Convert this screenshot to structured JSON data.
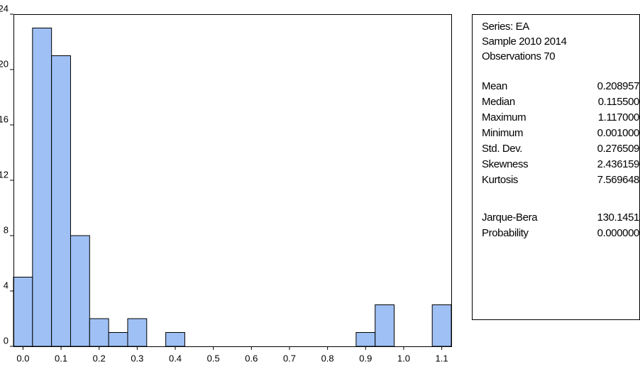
{
  "chart_data": {
    "type": "histogram",
    "bins": [
      -0.025,
      0.025,
      0.075,
      0.125,
      0.175,
      0.225,
      0.275,
      0.325,
      0.375,
      0.425,
      0.475,
      0.525,
      0.575,
      0.625,
      0.675,
      0.725,
      0.775,
      0.825,
      0.875,
      0.925,
      0.975,
      1.025,
      1.075,
      1.125
    ],
    "counts": [
      5,
      23,
      21,
      8,
      2,
      1,
      2,
      0,
      1,
      0,
      0,
      0,
      0,
      0,
      0,
      0,
      0,
      0,
      1,
      3,
      0,
      0,
      3
    ],
    "color": "#9ec0f5",
    "xlim": [
      -0.025,
      1.125
    ],
    "xticks": [
      {
        "value": 0,
        "label": "0.0"
      },
      0.1,
      0.2,
      0.3,
      0.4,
      0.5,
      0.6,
      0.7,
      0.8,
      0.9,
      {
        "value": 1,
        "label": "1.0"
      },
      1.1
    ],
    "ylim": [
      0,
      24
    ],
    "yticks": [
      0,
      4,
      8,
      12,
      16,
      20,
      24
    ]
  },
  "stats": {
    "header": [
      "Series: EA",
      "Sample 2010 2014",
      "Observations 70"
    ],
    "rows": [
      [
        "Mean",
        "0.208957"
      ],
      [
        "Median",
        "0.115500"
      ],
      [
        "Maximum",
        "1.117000"
      ],
      [
        "Minimum",
        "0.001000"
      ],
      [
        "Std. Dev.",
        "0.276509"
      ],
      [
        "Skewness",
        "2.436159"
      ],
      [
        "Kurtosis",
        "7.569648"
      ]
    ],
    "tests": [
      [
        "Jarque-Bera",
        "130.1451"
      ],
      [
        "Probability",
        "0.000000"
      ]
    ]
  }
}
